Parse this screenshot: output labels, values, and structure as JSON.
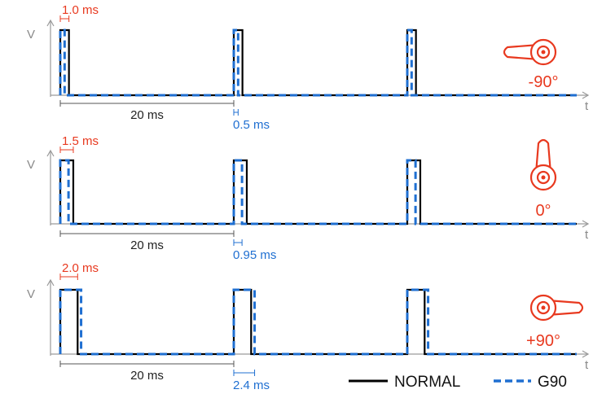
{
  "colors": {
    "normal": "#000000",
    "g90": "#1f6fd1",
    "highlight": "#e8391f",
    "axis": "#9a9a9a"
  },
  "axes": {
    "y_label": "V",
    "x_label": "t"
  },
  "legend": {
    "normal_label": "NORMAL",
    "g90_label": "G90"
  },
  "panels": [
    {
      "id": "minus90",
      "angle_label": "-90°",
      "servo_icon": "servo-horn-icon",
      "servo_direction": "left",
      "normal_pulse_ms": 1.0,
      "g90_pulse_ms": 0.5,
      "period_ms": 20,
      "pulse_label": "1.0 ms",
      "period_label": "20 ms",
      "g90_label": "0.5 ms"
    },
    {
      "id": "zero",
      "angle_label": "0°",
      "servo_icon": "servo-horn-icon",
      "servo_direction": "up",
      "normal_pulse_ms": 1.5,
      "g90_pulse_ms": 0.95,
      "period_ms": 20,
      "pulse_label": "1.5 ms",
      "period_label": "20 ms",
      "g90_label": "0.95 ms"
    },
    {
      "id": "plus90",
      "angle_label": "+90°",
      "servo_icon": "servo-horn-icon",
      "servo_direction": "right",
      "normal_pulse_ms": 2.0,
      "g90_pulse_ms": 2.4,
      "period_ms": 20,
      "pulse_label": "2.0 ms",
      "period_label": "20 ms",
      "g90_label": "2.4 ms"
    }
  ]
}
